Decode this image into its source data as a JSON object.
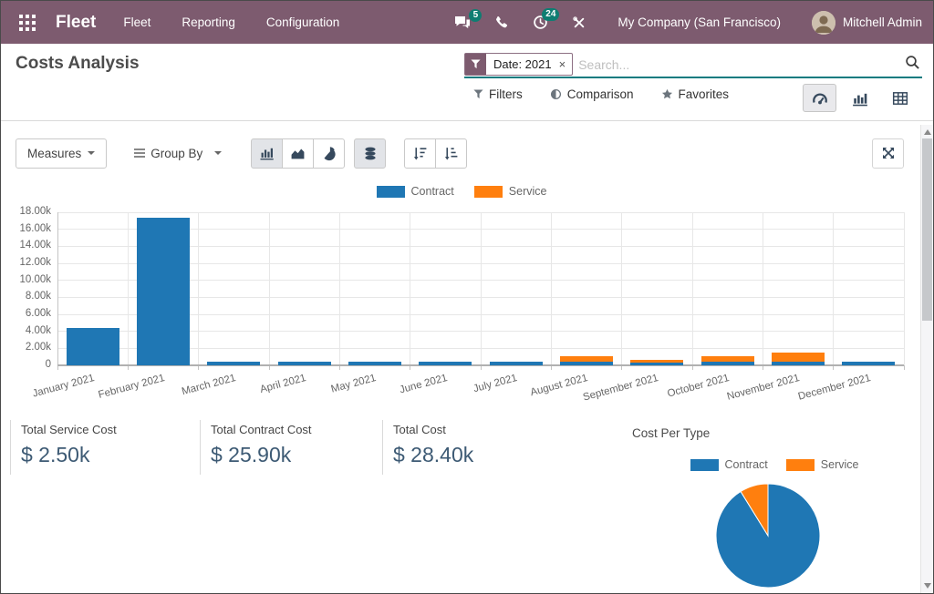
{
  "navbar": {
    "brand": "Fleet",
    "menus": [
      "Fleet",
      "Reporting",
      "Configuration"
    ],
    "messages_count": "5",
    "activities_count": "24",
    "company": "My Company (San Francisco)",
    "user": "Mitchell Admin"
  },
  "control_panel": {
    "title": "Costs Analysis",
    "search": {
      "facet": "Date: 2021",
      "remove_facet": "×",
      "placeholder": "Search..."
    },
    "filter_menus": {
      "filters": "Filters",
      "comparison": "Comparison",
      "favorites": "Favorites"
    }
  },
  "toolbar": {
    "measures": "Measures",
    "group_by": "Group By"
  },
  "chart_data": [
    {
      "type": "bar",
      "stacked": true,
      "title": "",
      "xlabel": "",
      "ylabel": "",
      "categories": [
        "January 2021",
        "February 2021",
        "March 2021",
        "April 2021",
        "May 2021",
        "June 2021",
        "July 2021",
        "August 2021",
        "September 2021",
        "October 2021",
        "November 2021",
        "December 2021"
      ],
      "series": [
        {
          "name": "Contract",
          "color": "#1f77b4",
          "values": [
            4400,
            17400,
            400,
            400,
            400,
            400,
            400,
            450,
            350,
            450,
            450,
            400
          ]
        },
        {
          "name": "Service",
          "color": "#ff7f0e",
          "values": [
            0,
            0,
            0,
            0,
            0,
            0,
            0,
            600,
            250,
            600,
            1050,
            0
          ]
        }
      ],
      "ylim": [
        0,
        18000
      ],
      "ytick_step": 2000,
      "ytick_labels": [
        "0",
        "2.00k",
        "4.00k",
        "6.00k",
        "8.00k",
        "10.00k",
        "12.00k",
        "14.00k",
        "16.00k",
        "18.00k"
      ],
      "legend_position": "top",
      "grid": true
    },
    {
      "type": "pie",
      "title": "Cost Per Type",
      "labels": [
        "Contract",
        "Service"
      ],
      "values": [
        25900,
        2500
      ],
      "colors": [
        "#1f77b4",
        "#ff7f0e"
      ],
      "legend_position": "top"
    }
  ],
  "kpis": [
    {
      "label": "Total Service Cost",
      "value": "$ 2.50k"
    },
    {
      "label": "Total Contract Cost",
      "value": "$ 25.90k"
    },
    {
      "label": "Total Cost",
      "value": "$ 28.40k"
    }
  ],
  "colors": {
    "navbar_bg": "#7d5b6f",
    "badge": "#0f7d72",
    "search_underline": "#0c7b80",
    "contract": "#1f77b4",
    "service": "#ff7f0e",
    "kpi_value": "#3d5a74"
  }
}
